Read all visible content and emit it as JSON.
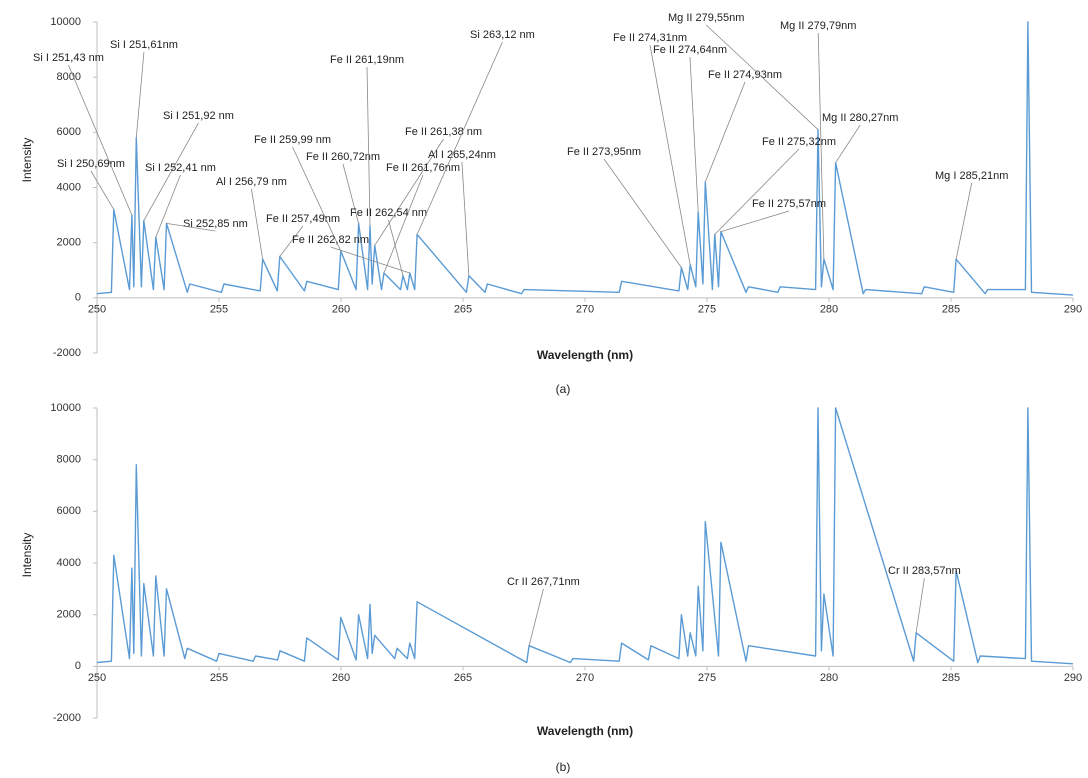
{
  "chart_data": [
    {
      "type": "line",
      "caption": "(a)",
      "x_label": "Wavelength (nm)",
      "y_label": "Intensity",
      "xlim": [
        250,
        290
      ],
      "xticks": [
        250,
        255,
        260,
        265,
        270,
        275,
        280,
        285,
        290
      ],
      "ylim": [
        -2000,
        10000
      ],
      "yticks": [
        -2000,
        0,
        2000,
        4000,
        6000,
        8000,
        10000
      ],
      "x": [
        250,
        250.59,
        250.69,
        251.33,
        251.43,
        251.51,
        251.61,
        251.82,
        251.92,
        252.31,
        252.41,
        252.75,
        252.85,
        253.7,
        253.8,
        255.1,
        255.2,
        256.69,
        256.79,
        257.39,
        257.49,
        258.5,
        258.6,
        259.89,
        259.99,
        260.62,
        260.72,
        261.09,
        261.19,
        261.28,
        261.38,
        261.66,
        261.76,
        262.44,
        262.54,
        262.72,
        262.82,
        263.02,
        263.12,
        265.14,
        265.24,
        265.9,
        266,
        267.4,
        267.5,
        271.4,
        271.5,
        273.85,
        273.95,
        274.21,
        274.31,
        274.54,
        274.64,
        274.83,
        274.93,
        275.22,
        275.32,
        275.47,
        275.57,
        276.6,
        276.7,
        277.9,
        278,
        279.45,
        279.55,
        279.69,
        279.79,
        280.17,
        280.27,
        281.4,
        281.5,
        283.8,
        283.9,
        285.11,
        285.21,
        286.4,
        286.5,
        288.05,
        288.15,
        288.3,
        290
      ],
      "values": [
        150,
        200,
        3200,
        300,
        3000,
        400,
        5800,
        400,
        2800,
        300,
        2200,
        300,
        2700,
        200,
        500,
        200,
        500,
        250,
        1400,
        250,
        1500,
        250,
        600,
        300,
        1700,
        300,
        2700,
        300,
        2600,
        500,
        1900,
        300,
        900,
        300,
        800,
        300,
        900,
        300,
        2300,
        200,
        800,
        200,
        500,
        150,
        300,
        200,
        600,
        250,
        1100,
        300,
        1200,
        400,
        3100,
        500,
        4200,
        300,
        2300,
        400,
        2400,
        200,
        400,
        200,
        400,
        300,
        6100,
        400,
        1400,
        300,
        4900,
        150,
        300,
        150,
        400,
        200,
        1400,
        150,
        300,
        300,
        10000,
        200,
        100
      ],
      "color": "#5b9bd5",
      "annotations": [
        "Si I 250,69nm",
        "Si I 251,43 nm",
        "Si I 251,61nm",
        "Si I 251,92 nm",
        "Si I 252,41 nm",
        "Si 252,85 nm",
        "Al I 256,79 nm",
        "Fe II 257,49nm",
        "Fe II 259,99 nm",
        "Fe II 260,72nm",
        "Fe II 261,19nm",
        "Fe II 261,38 nm",
        "Fe II 261,76nm",
        "Al I 265,24nm",
        "Fe II 262,54 nm",
        "Fe II 262,82 nm",
        "Si 263,12 nm",
        "Fe II 273,95nm",
        "Fe II 274,31nm",
        "Fe II 274,64nm",
        "Fe II 274,93nm",
        "Mg II 279,55nm",
        "Mg II 279,79nm",
        "Mg II 280,27nm",
        "Fe II 275,32nm",
        "Fe II 275,57nm",
        "Mg I 285,21nm"
      ]
    },
    {
      "type": "line",
      "caption": "(b)",
      "x_label": "Wavelength (nm)",
      "y_label": "Intensity",
      "xlim": [
        250,
        290
      ],
      "xticks": [
        250,
        255,
        260,
        265,
        270,
        275,
        280,
        285,
        290
      ],
      "ylim": [
        -2000,
        10000
      ],
      "yticks": [
        -2000,
        0,
        2000,
        4000,
        6000,
        8000,
        10000
      ],
      "x": [
        250,
        250.59,
        250.69,
        251.33,
        251.43,
        251.51,
        251.61,
        251.82,
        251.92,
        252.31,
        252.41,
        252.75,
        252.85,
        253.6,
        253.7,
        254.9,
        255,
        256.4,
        256.5,
        257.4,
        257.5,
        258.5,
        258.6,
        259.89,
        259.99,
        260.62,
        260.72,
        261.09,
        261.19,
        261.28,
        261.38,
        262.2,
        262.3,
        262.72,
        262.82,
        263.02,
        263.12,
        267.61,
        267.71,
        269.4,
        269.5,
        271.4,
        271.5,
        272.6,
        272.7,
        273.85,
        273.95,
        274.21,
        274.31,
        274.54,
        274.64,
        274.83,
        274.93,
        275.47,
        275.57,
        276.6,
        276.7,
        279.45,
        279.55,
        279.69,
        279.79,
        280.17,
        280.27,
        283.47,
        283.57,
        285.11,
        285.21,
        286.1,
        286.2,
        288.05,
        288.15,
        288.3,
        290
      ],
      "values": [
        150,
        200,
        4300,
        300,
        3800,
        500,
        7800,
        400,
        3200,
        400,
        3500,
        400,
        3000,
        300,
        700,
        200,
        500,
        200,
        400,
        250,
        600,
        200,
        1100,
        250,
        1900,
        250,
        2000,
        300,
        2400,
        500,
        1200,
        300,
        700,
        300,
        900,
        300,
        2500,
        150,
        800,
        150,
        300,
        200,
        900,
        250,
        800,
        300,
        2000,
        400,
        1300,
        400,
        3100,
        600,
        5600,
        400,
        4800,
        200,
        800,
        400,
        10000,
        600,
        2800,
        400,
        10000,
        200,
        1300,
        200,
        3700,
        150,
        400,
        300,
        10000,
        200,
        100
      ],
      "color": "#5b9bd5",
      "annotations": [
        "Cr II 267,71nm",
        "Cr II 283,57nm"
      ]
    }
  ]
}
